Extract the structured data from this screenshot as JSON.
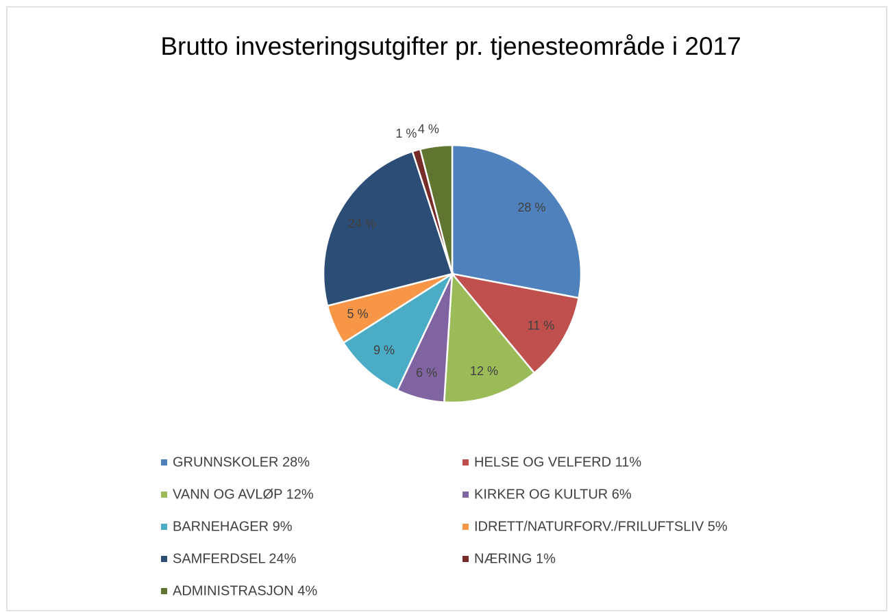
{
  "chart_data": {
    "type": "pie",
    "title": "Brutto investeringsutgifter pr. tjenesteområde i 2017",
    "categories": [
      "GRUNNSKOLER 28%",
      "HELSE OG VELFERD 11%",
      "VANN OG AVLØP 12%",
      "KIRKER OG KULTUR 6%",
      "BARNEHAGER 9%",
      "IDRETT/NATURFORV./FRILUFTSLIV 5%",
      "SAMFERDSEL 24%",
      "NÆRING 1%",
      "ADMINISTRASJON 4%"
    ],
    "values": [
      28,
      11,
      12,
      6,
      9,
      5,
      24,
      1,
      4
    ],
    "value_labels": [
      "28 %",
      "11 %",
      "12 %",
      "6 %",
      "9 %",
      "5 %",
      "24 %",
      "1 %",
      "4 %"
    ],
    "colors": [
      "#4f81bd",
      "#c0504d",
      "#9bbb59",
      "#8064a2",
      "#4bacc6",
      "#f79646",
      "#2c4d75",
      "#772c2a",
      "#5f7530"
    ],
    "legend": "bottom"
  }
}
